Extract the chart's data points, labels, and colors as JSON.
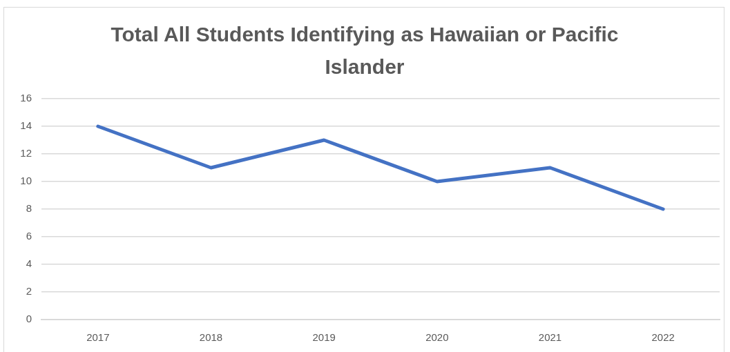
{
  "chart_data": {
    "type": "line",
    "title": "Total All Students Identifying as Hawaiian or Pacific Islander",
    "categories": [
      "2017",
      "2018",
      "2019",
      "2020",
      "2021",
      "2022"
    ],
    "series": [
      {
        "color": "#4472c4",
        "values": [
          14,
          11,
          13,
          10,
          11,
          8
        ]
      }
    ],
    "ylim": [
      0,
      16
    ],
    "yticks": [
      0,
      2,
      4,
      6,
      8,
      10,
      12,
      14,
      16
    ],
    "grid": "y",
    "marker": "none"
  }
}
